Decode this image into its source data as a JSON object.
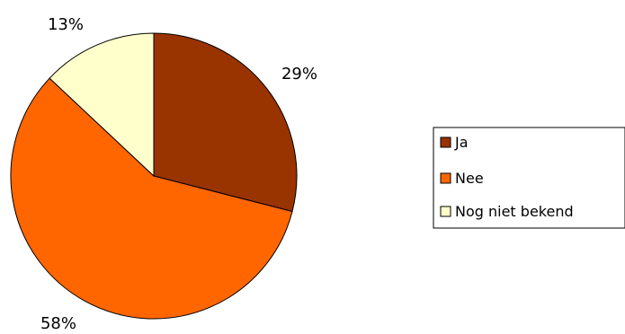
{
  "chart_data": {
    "type": "pie",
    "title": "",
    "categories": [
      "Ja",
      "Nee",
      "Nog niet bekend"
    ],
    "values": [
      29,
      58,
      13
    ],
    "labels": [
      "29%",
      "58%",
      "13%"
    ],
    "colors": [
      "#993300",
      "#ff6600",
      "#ffffcc"
    ],
    "start_angle_deg": 0,
    "direction": "clockwise",
    "legend_position": "right"
  }
}
